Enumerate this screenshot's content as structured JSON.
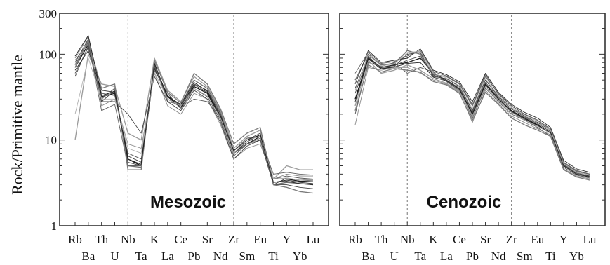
{
  "figure": {
    "ylabel": "Rock/Primitive mantle",
    "y_ticks": [
      1,
      10,
      100,
      300
    ],
    "y_tick_labels": [
      "1",
      "10",
      "100",
      "300"
    ],
    "ylim": [
      1,
      300
    ],
    "yscale": "log",
    "guide_elements": [
      "Nb",
      "Zr"
    ]
  },
  "chart_data": [
    {
      "type": "line",
      "title": "Mesozoic",
      "yscale": "log",
      "ylim": [
        1,
        300
      ],
      "categories": [
        "Rb",
        "Ba",
        "Th",
        "U",
        "Nb",
        "Ta",
        "K",
        "La",
        "Ce",
        "Pb",
        "Sr",
        "Nd",
        "Zr",
        "Sm",
        "Eu",
        "Ti",
        "Y",
        "Yb",
        "Lu"
      ],
      "series": [
        {
          "values": [
            70,
            130,
            32,
            35,
            6,
            5,
            70,
            32,
            24,
            42,
            35,
            18,
            7,
            9,
            11,
            3.5,
            3.5,
            3.3,
            3.3
          ]
        },
        {
          "values": [
            80,
            150,
            28,
            38,
            5.5,
            5,
            75,
            30,
            25,
            45,
            38,
            20,
            7,
            10,
            12,
            3,
            3.6,
            3.4,
            3.4
          ]
        },
        {
          "values": [
            60,
            120,
            35,
            33,
            7,
            6,
            65,
            35,
            23,
            40,
            32,
            17,
            6.5,
            9,
            10,
            3.5,
            3.8,
            3.6,
            3.5
          ]
        },
        {
          "values": [
            75,
            140,
            30,
            40,
            5,
            4.8,
            80,
            28,
            26,
            50,
            40,
            21,
            7.5,
            10.5,
            11,
            3,
            3.2,
            3.1,
            3
          ]
        },
        {
          "values": [
            90,
            160,
            25,
            30,
            9,
            8,
            60,
            25,
            20,
            35,
            30,
            15,
            6,
            8,
            9,
            3.5,
            4,
            3.8,
            3.8
          ]
        },
        {
          "values": [
            65,
            110,
            38,
            36,
            6.5,
            5.5,
            68,
            33,
            25,
            44,
            36,
            19,
            7,
            9.5,
            11.5,
            3.2,
            3.4,
            3.2,
            3.1
          ]
        },
        {
          "values": [
            10,
            100,
            45,
            42,
            12,
            10,
            90,
            38,
            28,
            55,
            42,
            22,
            8,
            11,
            13,
            3.5,
            5,
            4.5,
            4.5
          ]
        },
        {
          "values": [
            55,
            125,
            28,
            28,
            20,
            12,
            55,
            28,
            22,
            38,
            30,
            16,
            6,
            8.5,
            10,
            3,
            3,
            2.8,
            2.7
          ]
        },
        {
          "values": [
            85,
            135,
            22,
            26,
            5,
            5,
            72,
            30,
            24,
            30,
            28,
            18,
            7,
            9,
            10.5,
            4,
            4.2,
            4,
            3.9
          ]
        },
        {
          "values": [
            70,
            145,
            40,
            45,
            4.5,
            4.5,
            85,
            36,
            27,
            60,
            45,
            23,
            9,
            12,
            14,
            3,
            2.8,
            2.5,
            2.4
          ]
        },
        {
          "values": [
            20,
            90,
            30,
            30,
            8,
            7,
            62,
            30,
            25,
            40,
            33,
            18,
            7,
            10,
            11,
            3.5,
            3.6,
            3.4,
            3.3
          ]
        },
        {
          "values": [
            95,
            165,
            33,
            37,
            6,
            5.2,
            78,
            32,
            26,
            47,
            37,
            19,
            7.5,
            10,
            11.5,
            3.2,
            3.3,
            3.1,
            3
          ]
        }
      ]
    },
    {
      "type": "line",
      "title": "Cenozoic",
      "yscale": "log",
      "ylim": [
        1,
        300
      ],
      "categories": [
        "Rb",
        "Ba",
        "Th",
        "U",
        "Nb",
        "Ta",
        "K",
        "La",
        "Ce",
        "Pb",
        "Sr",
        "Nd",
        "Zr",
        "Sm",
        "Eu",
        "Ti",
        "Y",
        "Yb",
        "Lu"
      ],
      "series": [
        {
          "values": [
            30,
            90,
            70,
            75,
            80,
            90,
            60,
            50,
            40,
            20,
            45,
            30,
            22,
            18,
            15,
            12,
            5,
            4,
            3.8
          ]
        },
        {
          "values": [
            40,
            95,
            68,
            72,
            100,
            105,
            55,
            52,
            42,
            22,
            50,
            32,
            24,
            19,
            16,
            13,
            5.2,
            4.2,
            3.9
          ]
        },
        {
          "values": [
            20,
            80,
            72,
            80,
            60,
            70,
            62,
            48,
            38,
            18,
            40,
            28,
            20,
            17,
            14,
            11,
            4.8,
            3.9,
            3.6
          ]
        },
        {
          "values": [
            50,
            100,
            75,
            78,
            110,
            100,
            58,
            55,
            45,
            25,
            55,
            35,
            25,
            20,
            17,
            13,
            5.5,
            4.4,
            4
          ]
        },
        {
          "values": [
            15,
            70,
            65,
            70,
            70,
            60,
            50,
            45,
            36,
            16,
            38,
            27,
            19,
            16,
            13.5,
            11.5,
            4.6,
            3.8,
            3.5
          ]
        },
        {
          "values": [
            45,
            110,
            80,
            85,
            90,
            115,
            65,
            58,
            48,
            28,
            60,
            36,
            26,
            21,
            18,
            14,
            5.8,
            4.6,
            4.2
          ]
        },
        {
          "values": [
            25,
            85,
            60,
            65,
            75,
            65,
            52,
            46,
            37,
            19,
            42,
            29,
            21,
            17,
            14.5,
            12,
            5,
            4,
            3.7
          ]
        },
        {
          "values": [
            35,
            92,
            70,
            74,
            85,
            95,
            57,
            50,
            40,
            21,
            47,
            31,
            23,
            18.5,
            15.5,
            12.5,
            5.1,
            4.1,
            3.8
          ]
        },
        {
          "values": [
            60,
            105,
            78,
            82,
            95,
            110,
            63,
            56,
            46,
            26,
            58,
            34,
            25,
            20,
            17,
            13.5,
            5.4,
            4.3,
            4
          ]
        },
        {
          "values": [
            22,
            75,
            62,
            68,
            65,
            62,
            48,
            44,
            35,
            17,
            36,
            26,
            18,
            15,
            13,
            11,
            4.5,
            3.7,
            3.4
          ]
        },
        {
          "values": [
            38,
            98,
            73,
            77,
            105,
            108,
            60,
            53,
            43,
            23,
            52,
            33,
            24,
            19.5,
            16.5,
            13,
            5.3,
            4.2,
            3.9
          ]
        },
        {
          "values": [
            28,
            88,
            67,
            71,
            78,
            80,
            54,
            49,
            39,
            20,
            44,
            30,
            21.5,
            17.5,
            14.8,
            12.2,
            5,
            4,
            3.7
          ]
        }
      ]
    }
  ]
}
